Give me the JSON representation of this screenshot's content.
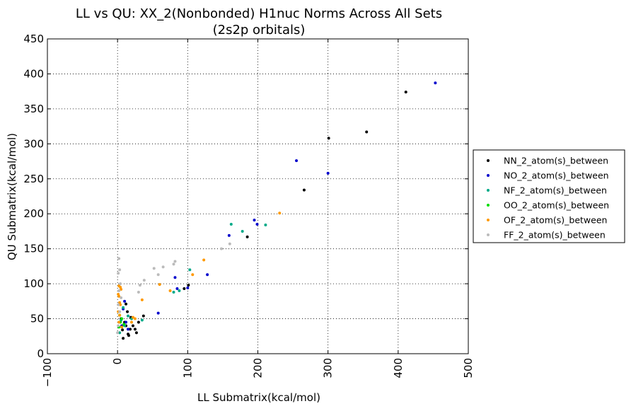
{
  "chart_data": {
    "type": "scatter",
    "title": "LL vs QU: XX_2(Nonbonded) H1nuc Norms Across All Sets",
    "subtitle": "(2s2p orbitals)",
    "xlabel": "LL Submatrix(kcal/mol)",
    "ylabel": "QU Submatrix(kcal/mol)",
    "xlim": [
      -100,
      500
    ],
    "ylim": [
      0,
      450
    ],
    "xticks": [
      "−100",
      "0",
      "100",
      "200",
      "300",
      "400",
      "500"
    ],
    "xtick_values": [
      -100,
      0,
      100,
      200,
      300,
      400,
      500
    ],
    "yticks": [
      "0",
      "50",
      "100",
      "150",
      "200",
      "250",
      "300",
      "350",
      "400",
      "450"
    ],
    "ytick_values": [
      0,
      50,
      100,
      150,
      200,
      250,
      300,
      350,
      400,
      450
    ],
    "grid": true,
    "legend_position": "right-outside",
    "series": [
      {
        "name": "NN_2_atom(s)_between",
        "color": "#000000",
        "points": [
          [
            411,
            374
          ],
          [
            355,
            317
          ],
          [
            301,
            308
          ],
          [
            266,
            234
          ],
          [
            185,
            167
          ],
          [
            101,
            98
          ],
          [
            95,
            93
          ],
          [
            37,
            54
          ],
          [
            12,
            71
          ],
          [
            10,
            45
          ],
          [
            8,
            22
          ],
          [
            15,
            28
          ],
          [
            18,
            35
          ],
          [
            22,
            40
          ],
          [
            27,
            30
          ],
          [
            25,
            35
          ],
          [
            30,
            45
          ],
          [
            16,
            26
          ],
          [
            5,
            50
          ],
          [
            12,
            40
          ],
          [
            19,
            52
          ],
          [
            7,
            34
          ],
          [
            14,
            60
          ]
        ]
      },
      {
        "name": "NO_2_atom(s)_between",
        "color": "#0000cc",
        "points": [
          [
            453,
            387
          ],
          [
            300,
            258
          ],
          [
            255,
            276
          ],
          [
            199,
            185
          ],
          [
            195,
            191
          ],
          [
            159,
            169
          ],
          [
            128,
            113
          ],
          [
            100,
            94
          ],
          [
            85,
            93
          ],
          [
            82,
            109
          ],
          [
            58,
            58
          ],
          [
            10,
            75
          ],
          [
            8,
            64
          ],
          [
            12,
            45
          ],
          [
            6,
            40
          ],
          [
            15,
            35
          ]
        ]
      },
      {
        "name": "NF_2_atom(s)_between",
        "color": "#00aa88",
        "points": [
          [
            211,
            184
          ],
          [
            178,
            175
          ],
          [
            162,
            185
          ],
          [
            103,
            120
          ],
          [
            88,
            90
          ],
          [
            80,
            88
          ],
          [
            35,
            48
          ],
          [
            15,
            54
          ],
          [
            8,
            66
          ],
          [
            5,
            48
          ],
          [
            10,
            40
          ],
          [
            20,
            50
          ],
          [
            3,
            30
          ]
        ]
      },
      {
        "name": "OO_2_atom(s)_between",
        "color": "#00dd00",
        "points": [
          [
            3,
            55
          ],
          [
            6,
            50
          ],
          [
            4,
            45
          ],
          [
            9,
            42
          ],
          [
            2,
            38
          ]
        ]
      },
      {
        "name": "OF_2_atom(s)_between",
        "color": "#ff9900",
        "points": [
          [
            231,
            201
          ],
          [
            123,
            134
          ],
          [
            107,
            113
          ],
          [
            75,
            90
          ],
          [
            60,
            99
          ],
          [
            35,
            77
          ],
          [
            20,
            45
          ],
          [
            22,
            52
          ],
          [
            2,
            97
          ],
          [
            4,
            95
          ],
          [
            5,
            92
          ],
          [
            1,
            85
          ],
          [
            2,
            82
          ],
          [
            3,
            73
          ],
          [
            1,
            60
          ],
          [
            4,
            70
          ],
          [
            3,
            55
          ],
          [
            2,
            45
          ],
          [
            6,
            38
          ],
          [
            25,
            50
          ]
        ]
      },
      {
        "name": "FF_2_atom(s)_between",
        "color": "#bbbbbb",
        "points": [
          [
            160,
            157
          ],
          [
            148,
            150
          ],
          [
            82,
            132
          ],
          [
            80,
            128
          ],
          [
            65,
            124
          ],
          [
            58,
            113
          ],
          [
            52,
            122
          ],
          [
            38,
            105
          ],
          [
            32,
            98
          ],
          [
            30,
            88
          ],
          [
            2,
            136
          ],
          [
            3,
            120
          ],
          [
            1,
            115
          ],
          [
            4,
            100
          ],
          [
            2,
            90
          ],
          [
            5,
            80
          ],
          [
            1,
            70
          ],
          [
            3,
            60
          ],
          [
            0,
            30
          ],
          [
            1,
            40
          ]
        ]
      }
    ]
  }
}
